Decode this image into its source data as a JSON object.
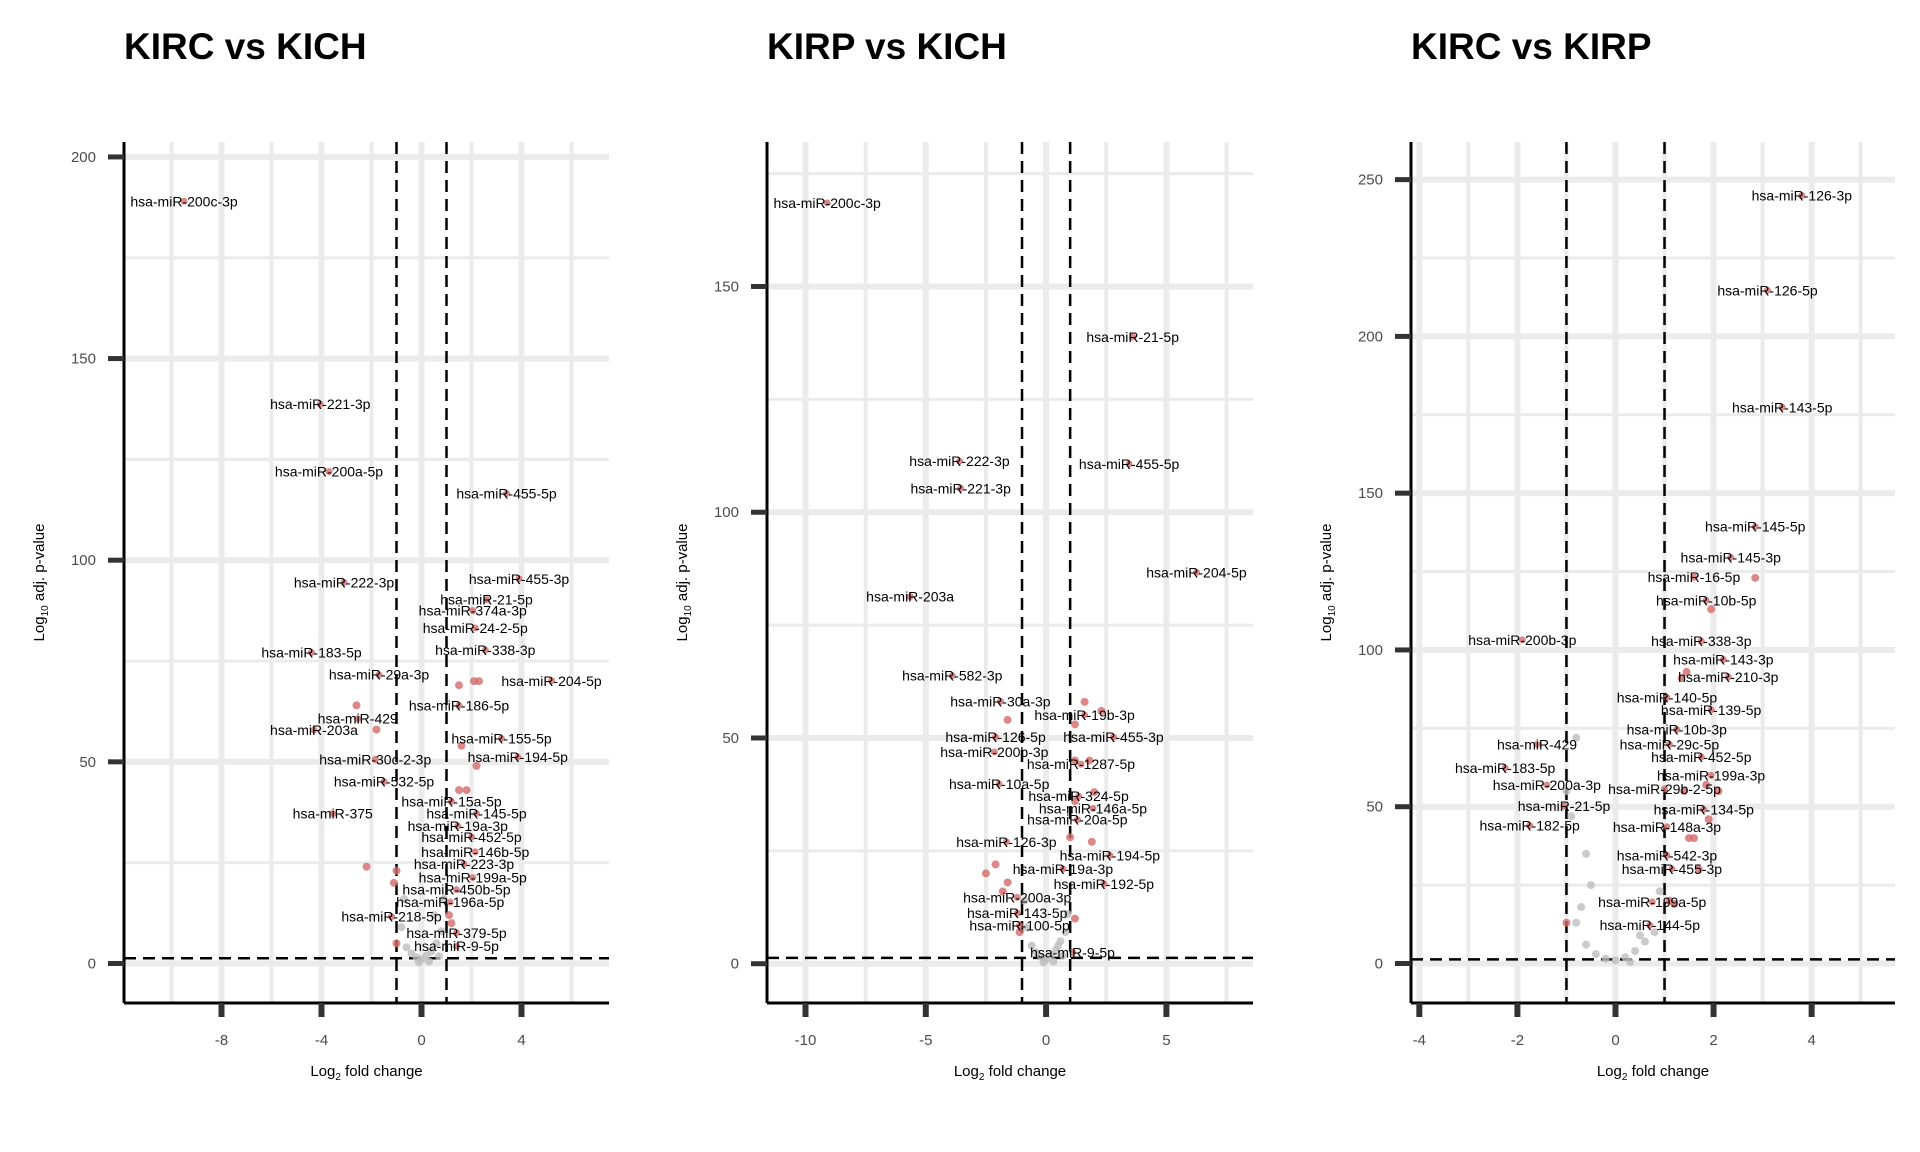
{
  "chart_data": [
    {
      "type": "scatter",
      "title": "KIRC vs KICH",
      "xlabel": "Log2 fold change",
      "ylabel": "Log10 adj. p-value",
      "xlim": [
        -11.9,
        7.5
      ],
      "ylim": [
        -9.8,
        203.7
      ],
      "xticks": [
        -8,
        -4,
        0,
        4
      ],
      "xgrid_step": 2,
      "yticks": [
        0,
        50,
        100,
        150,
        200
      ],
      "ygrid_step": 25,
      "fc_threshold": 1,
      "p_threshold": 1.3,
      "labeled_points": [
        {
          "label": "hsa-miR-200c-3p",
          "x": -9.5,
          "y": 189
        },
        {
          "label": "hsa-miR-221-3p",
          "x": -4.05,
          "y": 138.7
        },
        {
          "label": "hsa-miR-200a-5p",
          "x": -3.7,
          "y": 122
        },
        {
          "label": "hsa-miR-455-5p",
          "x": 3.4,
          "y": 116.5
        },
        {
          "label": "hsa-miR-455-3p",
          "x": 3.9,
          "y": 95.4
        },
        {
          "label": "hsa-miR-222-3p",
          "x": -3.1,
          "y": 94.5
        },
        {
          "label": "hsa-miR-21-5p",
          "x": 2.6,
          "y": 90.2
        },
        {
          "label": "hsa-miR-374a-3p",
          "x": 2.05,
          "y": 87.5
        },
        {
          "label": "hsa-miR-24-2-5p",
          "x": 2.15,
          "y": 83.2
        },
        {
          "label": "hsa-miR-183-5p",
          "x": -4.4,
          "y": 77.1
        },
        {
          "label": "hsa-miR-338-3p",
          "x": 2.55,
          "y": 77.7
        },
        {
          "label": "hsa-miR-29a-3p",
          "x": -1.7,
          "y": 71.6
        },
        {
          "label": "hsa-miR-204-5p",
          "x": 5.2,
          "y": 70.1
        },
        {
          "label": "hsa-miR-186-5p",
          "x": 1.5,
          "y": 64
        },
        {
          "label": "hsa-miR-429",
          "x": -2.55,
          "y": 60.7
        },
        {
          "label": "hsa-miR-203a",
          "x": -4.3,
          "y": 57.9
        },
        {
          "label": "hsa-miR-155-5p",
          "x": 3.2,
          "y": 55.8
        },
        {
          "label": "hsa-miR-194-5p",
          "x": 3.85,
          "y": 51.2
        },
        {
          "label": "hsa-miR-30c-2-3p",
          "x": -1.85,
          "y": 50.6
        },
        {
          "label": "hsa-miR-532-5p",
          "x": -1.5,
          "y": 45.1
        },
        {
          "label": "hsa-miR-15a-5p",
          "x": 1.2,
          "y": 40.2
        },
        {
          "label": "hsa-miR-375",
          "x": -3.55,
          "y": 37.2
        },
        {
          "label": "hsa-miR-145-5p",
          "x": 2.2,
          "y": 37.2
        },
        {
          "label": "hsa-miR-19a-3p",
          "x": 1.45,
          "y": 34.1
        },
        {
          "label": "hsa-miR-452-5p",
          "x": 2.0,
          "y": 31.4
        },
        {
          "label": "hsa-miR-146b-5p",
          "x": 2.15,
          "y": 27.7
        },
        {
          "label": "hsa-miR-223-3p",
          "x": 1.7,
          "y": 24.7
        },
        {
          "label": "hsa-miR-199a-5p",
          "x": 2.05,
          "y": 21.3
        },
        {
          "label": "hsa-miR-450b-5p",
          "x": 1.4,
          "y": 18.3
        },
        {
          "label": "hsa-miR-196a-5p",
          "x": 1.15,
          "y": 15.2
        },
        {
          "label": "hsa-miR-218-5p",
          "x": -1.2,
          "y": 11.6
        },
        {
          "label": "hsa-miR-379-5p",
          "x": 1.4,
          "y": 7.6
        },
        {
          "label": "hsa-miR-9-5p",
          "x": 1.4,
          "y": 4.3
        }
      ],
      "other_sig_points": [
        [
          -2.6,
          64
        ],
        [
          -1.8,
          58
        ],
        [
          -2.2,
          24
        ],
        [
          -1.0,
          23
        ],
        [
          -1.1,
          20
        ],
        [
          1.5,
          69
        ],
        [
          2.1,
          70
        ],
        [
          2.3,
          70
        ],
        [
          1.6,
          54
        ],
        [
          2.2,
          49
        ],
        [
          1.5,
          43
        ],
        [
          1.8,
          43
        ],
        [
          1.1,
          12
        ],
        [
          1.2,
          10
        ],
        [
          -1.0,
          5
        ]
      ],
      "nonsig_points": [
        [
          0,
          1
        ],
        [
          0.2,
          2
        ],
        [
          -0.2,
          1.5
        ],
        [
          0.4,
          3
        ],
        [
          -0.4,
          2.5
        ],
        [
          0.6,
          5
        ],
        [
          -0.6,
          4
        ],
        [
          0.8,
          8
        ],
        [
          -0.8,
          9
        ],
        [
          0.5,
          12
        ],
        [
          0.9,
          16
        ],
        [
          -0.7,
          16
        ],
        [
          0.3,
          0.5
        ],
        [
          -0.1,
          0.3
        ],
        [
          0.7,
          1.8
        ]
      ]
    },
    {
      "type": "scatter",
      "title": "KIRP vs KICH",
      "xlabel": "Log2 fold change",
      "ylabel": "Log10 adj. p-value",
      "xlim": [
        -11.6,
        8.6
      ],
      "ylim": [
        -8.7,
        182
      ],
      "xticks": [
        -10,
        -5,
        0,
        5
      ],
      "xgrid_step": 2.5,
      "yticks": [
        0,
        50,
        100,
        150
      ],
      "ygrid_step": 25,
      "fc_threshold": 1,
      "p_threshold": 1.3,
      "labeled_points": [
        {
          "label": "hsa-miR-200c-3p",
          "x": -9.1,
          "y": 168.5
        },
        {
          "label": "hsa-miR-21-5p",
          "x": 3.6,
          "y": 138.8
        },
        {
          "label": "hsa-miR-222-3p",
          "x": -3.6,
          "y": 111.3
        },
        {
          "label": "hsa-miR-455-5p",
          "x": 3.45,
          "y": 110.7
        },
        {
          "label": "hsa-miR-221-3p",
          "x": -3.55,
          "y": 105.3
        },
        {
          "label": "hsa-miR-204-5p",
          "x": 6.25,
          "y": 86.7
        },
        {
          "label": "hsa-miR-203a",
          "x": -5.65,
          "y": 81.3
        },
        {
          "label": "hsa-miR-582-3p",
          "x": -3.9,
          "y": 63.8
        },
        {
          "label": "hsa-miR-30a-3p",
          "x": -1.9,
          "y": 58.1
        },
        {
          "label": "hsa-miR-19b-3p",
          "x": 1.6,
          "y": 55.1
        },
        {
          "label": "hsa-miR-126-5p",
          "x": -2.1,
          "y": 50.2
        },
        {
          "label": "hsa-miR-455-3p",
          "x": 2.8,
          "y": 50.2
        },
        {
          "label": "hsa-miR-200b-3p",
          "x": -2.15,
          "y": 46.9
        },
        {
          "label": "hsa-miR-1287-5p",
          "x": 1.45,
          "y": 44.2
        },
        {
          "label": "hsa-miR-10a-5p",
          "x": -1.95,
          "y": 39.8
        },
        {
          "label": "hsa-miR-324-5p",
          "x": 1.35,
          "y": 37.1
        },
        {
          "label": "hsa-miR-146a-5p",
          "x": 1.95,
          "y": 34.4
        },
        {
          "label": "hsa-miR-20a-5p",
          "x": 1.3,
          "y": 31.9
        },
        {
          "label": "hsa-miR-126-3p",
          "x": -1.65,
          "y": 27
        },
        {
          "label": "hsa-miR-194-5p",
          "x": 2.65,
          "y": 24
        },
        {
          "label": "hsa-miR-19a-3p",
          "x": 0.7,
          "y": 21
        },
        {
          "label": "hsa-miR-192-5p",
          "x": 2.4,
          "y": 17.7
        },
        {
          "label": "hsa-miR-200a-3p",
          "x": -1.2,
          "y": 14.7
        },
        {
          "label": "hsa-miR-143-5p",
          "x": -1.2,
          "y": 11.2
        },
        {
          "label": "hsa-miR-100-5p",
          "x": -1.1,
          "y": 8.5
        },
        {
          "label": "hsa-miR-9-5p",
          "x": 1.1,
          "y": 2.5
        }
      ],
      "other_sig_points": [
        [
          1.6,
          58
        ],
        [
          2.3,
          56
        ],
        [
          1.2,
          53
        ],
        [
          -1.6,
          54
        ],
        [
          1.2,
          45
        ],
        [
          1.8,
          45
        ],
        [
          2.0,
          38
        ],
        [
          1.2,
          36
        ],
        [
          1.0,
          28
        ],
        [
          1.9,
          27
        ],
        [
          -2.5,
          20
        ],
        [
          -2.1,
          22
        ],
        [
          -1.6,
          18
        ],
        [
          -1.8,
          16
        ],
        [
          1.2,
          10
        ],
        [
          -1.1,
          7
        ]
      ],
      "nonsig_points": [
        [
          0,
          1
        ],
        [
          0.2,
          2
        ],
        [
          -0.2,
          1.5
        ],
        [
          0.4,
          3
        ],
        [
          -0.4,
          2.5
        ],
        [
          0.6,
          5
        ],
        [
          -0.6,
          4
        ],
        [
          0.8,
          7
        ],
        [
          -0.8,
          8
        ],
        [
          0.9,
          11
        ],
        [
          -0.9,
          14
        ],
        [
          0.3,
          0.5
        ],
        [
          -0.1,
          0.3
        ],
        [
          0.7,
          1.8
        ],
        [
          0.5,
          4
        ]
      ]
    },
    {
      "type": "scatter",
      "title": "KIRC vs KIRP",
      "xlabel": "Log2 fold change",
      "ylabel": "Log10 adj. p-value",
      "xlim": [
        -4.17,
        5.7
      ],
      "ylim": [
        -12.6,
        262
      ],
      "xticks": [
        -4,
        -2,
        0,
        2,
        4
      ],
      "xgrid_step": 1,
      "yticks": [
        0,
        50,
        100,
        150,
        200,
        250
      ],
      "ygrid_step": 25,
      "fc_threshold": 1,
      "p_threshold": 1.3,
      "labeled_points": [
        {
          "label": "hsa-miR-126-3p",
          "x": 3.8,
          "y": 244.9
        },
        {
          "label": "hsa-miR-126-5p",
          "x": 3.1,
          "y": 214.7
        },
        {
          "label": "hsa-miR-143-5p",
          "x": 3.4,
          "y": 177.4
        },
        {
          "label": "hsa-miR-145-5p",
          "x": 2.85,
          "y": 139.3
        },
        {
          "label": "hsa-miR-145-3p",
          "x": 2.35,
          "y": 129.5
        },
        {
          "label": "hsa-miR-16-5p",
          "x": 1.6,
          "y": 123.2
        },
        {
          "label": "hsa-miR-10b-5p",
          "x": 1.85,
          "y": 115.8
        },
        {
          "label": "hsa-miR-200b-3p",
          "x": -1.9,
          "y": 103.2
        },
        {
          "label": "hsa-miR-338-3p",
          "x": 1.75,
          "y": 102.8
        },
        {
          "label": "hsa-miR-143-3p",
          "x": 2.2,
          "y": 96.9
        },
        {
          "label": "hsa-miR-210-3p",
          "x": 2.3,
          "y": 91.4
        },
        {
          "label": "hsa-miR-140-5p",
          "x": 1.05,
          "y": 84.8
        },
        {
          "label": "hsa-miR-139-5p",
          "x": 1.95,
          "y": 80.9
        },
        {
          "label": "hsa-miR-10b-3p",
          "x": 1.25,
          "y": 74.6
        },
        {
          "label": "hsa-miR-429",
          "x": -1.6,
          "y": 69.9
        },
        {
          "label": "hsa-miR-29c-5p",
          "x": 1.1,
          "y": 69.9
        },
        {
          "label": "hsa-miR-452-5p",
          "x": 1.75,
          "y": 65.9
        },
        {
          "label": "hsa-miR-183-5p",
          "x": -2.25,
          "y": 62.4
        },
        {
          "label": "hsa-miR-199a-3p",
          "x": 1.95,
          "y": 60
        },
        {
          "label": "hsa-miR-200a-3p",
          "x": -1.4,
          "y": 56.9
        },
        {
          "label": "hsa-miR-29b-2-5p",
          "x": 1.0,
          "y": 55.7
        },
        {
          "label": "hsa-miR-21-5p",
          "x": -1.05,
          "y": 50.2
        },
        {
          "label": "hsa-miR-134-5p",
          "x": 1.8,
          "y": 49.1
        },
        {
          "label": "hsa-miR-182-5p",
          "x": -1.75,
          "y": 44
        },
        {
          "label": "hsa-miR-148a-3p",
          "x": 1.05,
          "y": 43.6
        },
        {
          "label": "hsa-miR-542-3p",
          "x": 1.05,
          "y": 34.5
        },
        {
          "label": "hsa-miR-455-3p",
          "x": 1.15,
          "y": 30.2
        },
        {
          "label": "hsa-miR-199a-5p",
          "x": 0.75,
          "y": 19.6
        },
        {
          "label": "hsa-miR-144-5p",
          "x": 0.7,
          "y": 12.2
        }
      ],
      "other_sig_points": [
        [
          2.85,
          123
        ],
        [
          1.95,
          113
        ],
        [
          1.45,
          93
        ],
        [
          1.35,
          91
        ],
        [
          1.85,
          57
        ],
        [
          1.4,
          55
        ],
        [
          2.1,
          55
        ],
        [
          1.9,
          46
        ],
        [
          1.5,
          40
        ],
        [
          1.6,
          40
        ],
        [
          1.7,
          30
        ],
        [
          1.1,
          20
        ],
        [
          1.2,
          19
        ],
        [
          -1.0,
          13
        ]
      ],
      "nonsig_points": [
        [
          0,
          1
        ],
        [
          0.2,
          2
        ],
        [
          -0.2,
          1.5
        ],
        [
          0.4,
          4
        ],
        [
          -0.4,
          3
        ],
        [
          0.6,
          7
        ],
        [
          -0.6,
          6
        ],
        [
          0.8,
          10
        ],
        [
          -0.8,
          13
        ],
        [
          -0.7,
          18
        ],
        [
          -0.5,
          25
        ],
        [
          -0.6,
          35
        ],
        [
          -0.9,
          47
        ],
        [
          -1.0,
          55
        ],
        [
          0.9,
          23
        ],
        [
          -0.8,
          72
        ],
        [
          0.3,
          0.5
        ],
        [
          0.5,
          9
        ]
      ]
    }
  ],
  "colors": {
    "significant": "#d46a6a",
    "nonsignificant": "#bdbdbd",
    "grid": "#ebebeb",
    "axis": "#000000"
  }
}
